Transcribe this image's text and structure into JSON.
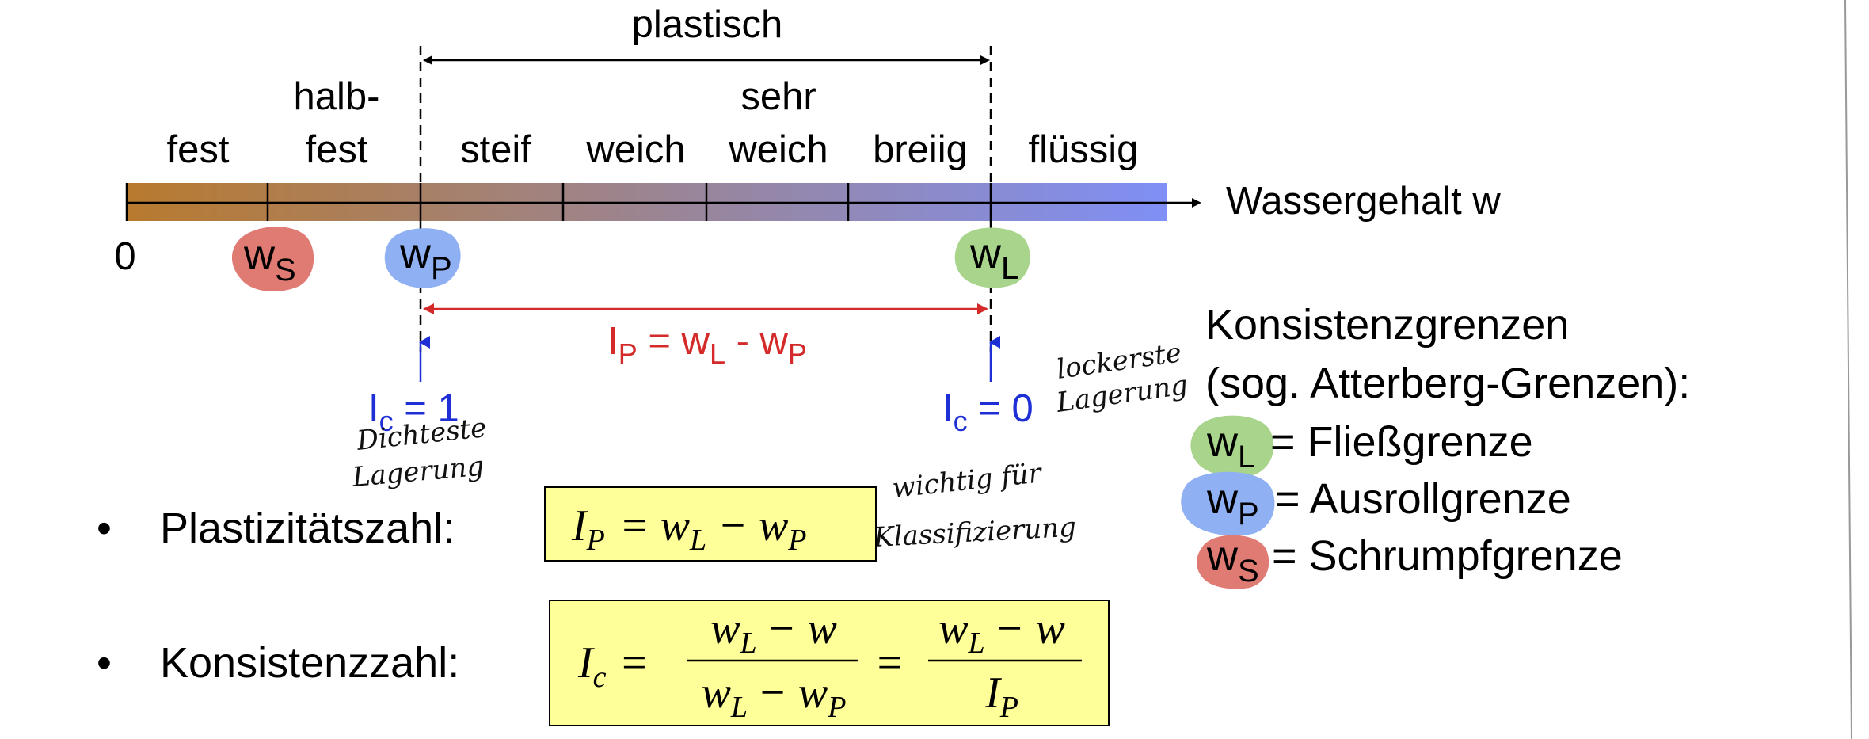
{
  "colors": {
    "bar_start": "#b87a2e",
    "bar_end": "#7f8ff5",
    "ws_blob": "#e07b74",
    "wp_blob": "#8fb0f2",
    "wl_blob": "#a8d48c",
    "formula_box": "#ffff99",
    "red_annotation": "#d42a2a",
    "blue_annotation": "#1f2fd6"
  },
  "header": {
    "plastisch": "plastisch"
  },
  "zones": [
    {
      "line1": "",
      "line2": "fest"
    },
    {
      "line1": "halb-",
      "line2": "fest"
    },
    {
      "line1": "",
      "line2": "steif"
    },
    {
      "line1": "",
      "line2": "weich"
    },
    {
      "line1": "sehr",
      "line2": "weich"
    },
    {
      "line1": "",
      "line2": "breiig"
    },
    {
      "line1": "",
      "line2": "flüssig"
    }
  ],
  "axis": {
    "zero": "0",
    "label": "Wassergehalt w"
  },
  "markers": {
    "ws": {
      "main": "w",
      "sub": "S"
    },
    "wp": {
      "main": "w",
      "sub": "P"
    },
    "wl": {
      "main": "w",
      "sub": "L"
    }
  },
  "ip_range": {
    "i": "I",
    "sub1": "P",
    "mid": " = w",
    "sub2": "L",
    "dash": " - w",
    "sub3": "P"
  },
  "ic_left": {
    "i": "I",
    "sub": "c",
    "rest": " = 1"
  },
  "ic_right": {
    "i": "I",
    "sub": "c",
    "rest": " = 0"
  },
  "handwriting": {
    "dichteste": "Dichteste",
    "lagerung_left": "Lagerung",
    "lockerste": "lockerste",
    "lagerung_right": "Lagerung",
    "wichtig": "wichtig für",
    "klassifizierung": "Klassifizierung"
  },
  "legend": {
    "title1": "Konsistenzgrenzen",
    "title2": "(sog. Atterberg-Grenzen):",
    "wl": "= Fließgrenze",
    "wp": "= Ausrollgrenze",
    "ws": "= Schrumpfgrenze"
  },
  "bullets": {
    "bullet_char": "•",
    "plast_label": "Plastizitätszahl:",
    "kons_label": "Konsistenzzahl:"
  },
  "formulas": {
    "ip_formula": {
      "I": "I",
      "P": "P",
      "eq": "= w",
      "L": "L",
      "minus": "− w",
      "P2": "P"
    },
    "ic_formula": {
      "I": "I",
      "c": "c",
      "eq": "=",
      "num": "w",
      "numL": "L",
      "numMinus": "− w",
      "den": "w",
      "denL": "L",
      "denMinus": "− w",
      "denP": "P",
      "eq2": "=",
      "num2": "w",
      "num2L": "L",
      "num2Minus": "− w",
      "den2": "I",
      "den2P": "P"
    }
  }
}
